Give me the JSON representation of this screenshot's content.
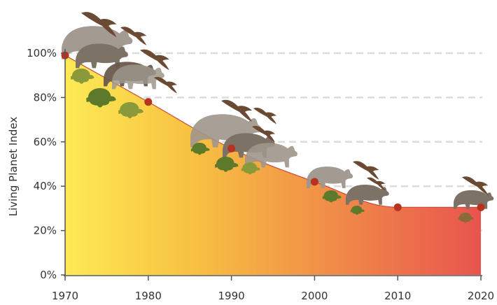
{
  "chart_data": {
    "type": "area",
    "title": "",
    "xlabel": "",
    "ylabel": "Living Planet Index",
    "x": [
      1970,
      1980,
      1990,
      2000,
      2010,
      2020
    ],
    "values": [
      99,
      78,
      57,
      42,
      30.5,
      30.5
    ],
    "xlim": [
      1970,
      2020
    ],
    "ylim": [
      0,
      100
    ],
    "xticks": [
      "1970",
      "1980",
      "1990",
      "2000",
      "2010",
      "2020"
    ],
    "yticks": [
      "0%",
      "20%",
      "40%",
      "60%",
      "80%",
      "100%"
    ],
    "ytick_values": [
      0,
      20,
      40,
      60,
      80,
      100
    ],
    "grid": "dashed horizontal",
    "colors": {
      "gradient_start": "#fdea55",
      "gradient_mid": "#f8c242",
      "gradient_end": "#e8544e",
      "marker": "#b8321f",
      "curve": "#c8493a",
      "grid": "#dcdcdc",
      "axis": "#555555",
      "animal_grey": "#9e968c",
      "animal_brown": "#6b4a34",
      "animal_green": "#5d7a2a"
    },
    "decorations": [
      "rhino-icon",
      "bird-icon",
      "turtle-icon"
    ]
  }
}
